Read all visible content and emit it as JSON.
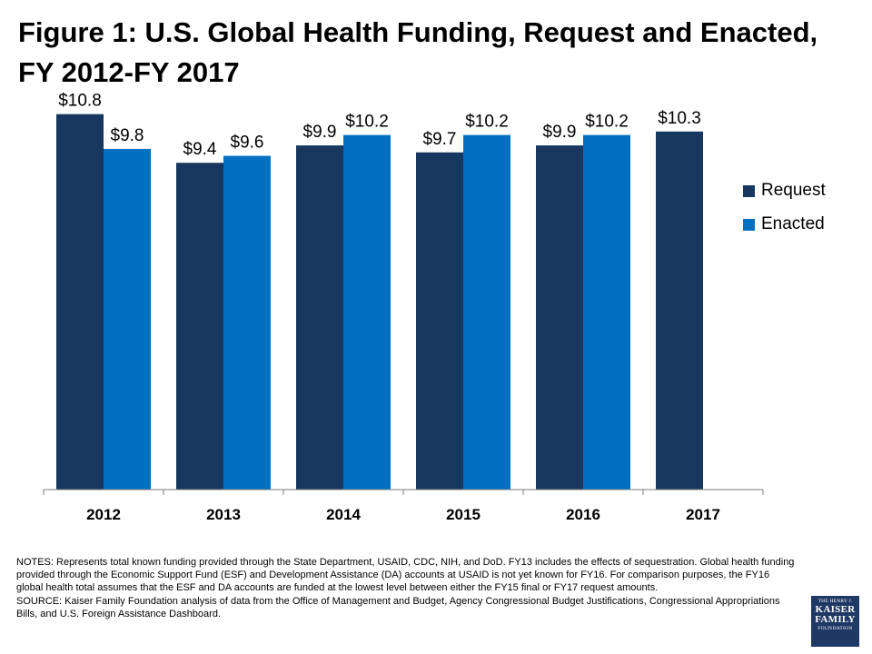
{
  "title": "Figure 1: U.S. Global Health Funding, Request and Enacted, FY 2012-FY 2017",
  "colors": {
    "request": "#17375e",
    "enacted": "#0070c0",
    "axis": "#7f7f7f"
  },
  "chart_data": {
    "type": "bar",
    "categories": [
      "2012",
      "2013",
      "2014",
      "2015",
      "2016",
      "2017"
    ],
    "series": [
      {
        "name": "Request",
        "values": [
          10.8,
          9.4,
          9.9,
          9.7,
          9.9,
          10.3
        ],
        "labels": [
          "$10.8",
          "$9.4",
          "$9.9",
          "$9.7",
          "$9.9",
          "$10.3"
        ]
      },
      {
        "name": "Enacted",
        "values": [
          9.8,
          9.6,
          10.2,
          10.2,
          10.2,
          null
        ],
        "labels": [
          "$9.8",
          "$9.6",
          "$10.2",
          "$10.2",
          "$10.2",
          null
        ]
      }
    ],
    "ylim": [
      0,
      11
    ],
    "grid": false,
    "legend": "right"
  },
  "notes": "NOTES: Represents total known funding provided through the State Department, USAID, CDC, NIH, and DoD. FY13 includes the effects of sequestration. Global health funding provided through the Economic Support Fund (ESF) and Development Assistance (DA) accounts at USAID is not yet known for FY16. For comparison purposes, the FY16 global health total assumes that the ESF and DA accounts are funded at the lowest level between either the FY15 final or FY17 request amounts.",
  "source": "SOURCE: Kaiser Family Foundation analysis of data from the Office of Management and Budget, Agency Congressional Budget Justifications, Congressional Appropriations Bills, and U.S. Foreign Assistance Dashboard.",
  "logo": {
    "line1": "THE HENRY J.",
    "line2": "KAISER",
    "line3": "FAMILY",
    "line4": "FOUNDATION"
  }
}
